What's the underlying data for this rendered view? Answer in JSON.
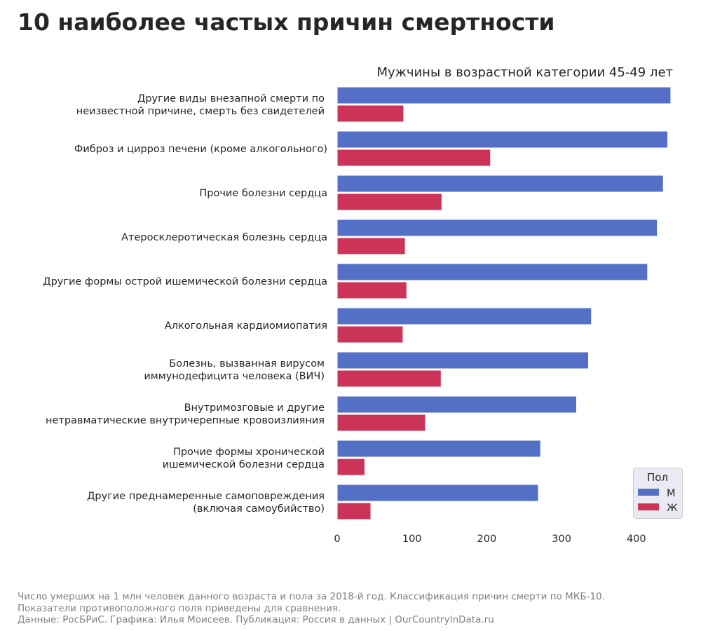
{
  "title": "10 наиболее частых причин смертности",
  "footer": [
    "Число умерших на 1 млн человек данного возраста и пола за 2018-й год. Классификация причин смерти по МКБ-10.",
    "Показатели противоположного поля приведены для сравнения.",
    "Данные: РосБРиС. Графика: Илья Моисеев. Публикация: Россия в данных | OurCountryInData.ru"
  ],
  "chart_data": {
    "type": "bar",
    "orientation": "horizontal",
    "title": "Мужчины в возрастной категории 45-49 лет",
    "xlabel": "",
    "ylabel": "",
    "xlim": [
      0,
      460
    ],
    "xticks": [
      0,
      100,
      200,
      300,
      400
    ],
    "grid": false,
    "legend": {
      "title": "Пол",
      "position": "bottom-right"
    },
    "categories": [
      [
        "Другие виды внезапной смерти по",
        "неизвестной причине, смерть без свидетелей"
      ],
      [
        "Фиброз и цирроз печени (кроме алкогольного)"
      ],
      [
        "Прочие болезни сердца"
      ],
      [
        "Атеросклеротическая болезнь сердца"
      ],
      [
        "Другие формы острой ишемической болезни сердца"
      ],
      [
        "Алкогольная кардиомиопатия"
      ],
      [
        "Болезнь, вызванная вирусом",
        "иммунодефицита человека (ВИЧ)"
      ],
      [
        "Внутримозговые и другие",
        "нетравматические внутричерепные кровоизлияния"
      ],
      [
        "Прочие формы хронической",
        "ишемической болезни сердца"
      ],
      [
        "Другие преднамеренные самоповреждения",
        "(включая самоубийство)"
      ]
    ],
    "series": [
      {
        "name": "М",
        "color": "#5470c6",
        "values": [
          446,
          442,
          436,
          428,
          415,
          340,
          336,
          320,
          272,
          269
        ]
      },
      {
        "name": "Ж",
        "color": "#cc3358",
        "values": [
          89,
          205,
          140,
          91,
          93,
          88,
          139,
          118,
          37,
          45
        ]
      }
    ]
  }
}
